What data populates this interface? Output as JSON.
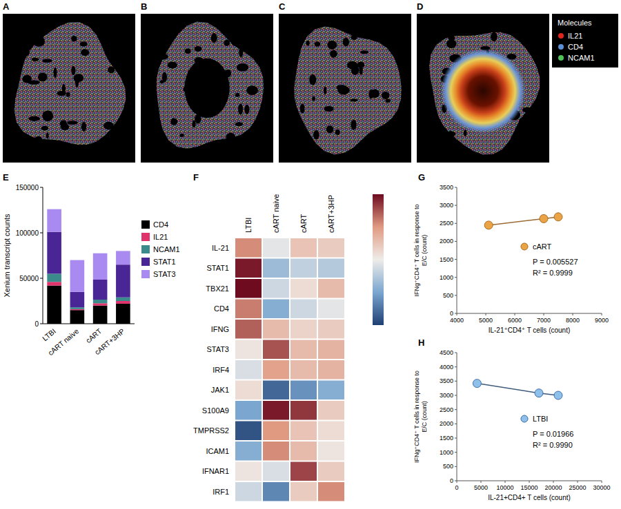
{
  "images": {
    "panels": [
      {
        "panel_label": "A"
      },
      {
        "panel_label": "B"
      },
      {
        "panel_label": "C"
      },
      {
        "panel_label": "D"
      }
    ],
    "legend": {
      "title": "Molecules",
      "items": [
        {
          "name": "IL21",
          "color": "#e0241f"
        },
        {
          "name": "CD4",
          "color": "#5b8fd6"
        },
        {
          "name": "NCAM1",
          "color": "#4fc25a"
        }
      ]
    }
  },
  "chart_data": [
    {
      "panel_label": "E",
      "type": "bar",
      "stacked": true,
      "categories": [
        "LTBI",
        "cART naive",
        "cART",
        "cART+3HP"
      ],
      "series": [
        {
          "name": "CD4",
          "color": "#000000",
          "values": [
            42000,
            15000,
            20000,
            22000
          ]
        },
        {
          "name": "IL21",
          "color": "#e0336b",
          "values": [
            4000,
            1000,
            2500,
            3000
          ]
        },
        {
          "name": "NCAM1",
          "color": "#3b8a8c",
          "values": [
            9000,
            2000,
            4000,
            4000
          ]
        },
        {
          "name": "STAT1",
          "color": "#4a2596",
          "values": [
            46000,
            17000,
            22000,
            36000
          ]
        },
        {
          "name": "STAT3",
          "color": "#a98af0",
          "values": [
            25000,
            35000,
            29000,
            15000
          ]
        }
      ],
      "ylim": [
        0,
        150000
      ],
      "yticks": [
        0,
        50000,
        100000,
        150000
      ],
      "y_label": "Xenium transcript counts",
      "legend": "right"
    },
    {
      "panel_label": "F",
      "type": "heatmap",
      "columns": [
        "LTBI",
        "cART naive",
        "cART",
        "cART+3HP"
      ],
      "rows": [
        "IL-21",
        "STAT1",
        "TBX21",
        "CD4",
        "IFNG",
        "STAT3",
        "IRF4",
        "JAK1",
        "S100A9",
        "TMPRSS2",
        "ICAM1",
        "IFNAR1",
        "IRF1"
      ],
      "cells": [
        [
          0.55,
          -0.05,
          0.25,
          0.2
        ],
        [
          0.95,
          -0.35,
          -0.2,
          -0.25
        ],
        [
          1.0,
          -0.15,
          0.1,
          0.3
        ],
        [
          0.6,
          -0.45,
          -0.15,
          -0.05
        ],
        [
          0.7,
          0.3,
          0.15,
          0.2
        ],
        [
          0.05,
          0.75,
          0.3,
          0.35
        ],
        [
          -0.1,
          0.45,
          0.3,
          0.35
        ],
        [
          0.1,
          -0.8,
          -0.6,
          -0.45
        ],
        [
          -0.5,
          0.95,
          0.85,
          0.2
        ],
        [
          -0.9,
          0.5,
          0.25,
          0.1
        ],
        [
          -0.45,
          0.55,
          0.3,
          0.05
        ],
        [
          0.05,
          -0.1,
          0.8,
          0.2
        ],
        [
          -0.15,
          -0.65,
          0.2,
          0.55
        ]
      ],
      "colorbar": {
        "range": [
          -1,
          1
        ]
      }
    },
    {
      "panel_label": "G",
      "type": "scatter",
      "series": [
        {
          "name": "cART",
          "color": "#eaa446",
          "marker": "circle",
          "line_style": "solid",
          "x": [
            5100,
            7000,
            7500
          ],
          "values": [
            2450,
            2630,
            2680
          ]
        }
      ],
      "xlim": [
        4000,
        9000
      ],
      "xticks": [
        4000,
        5000,
        6000,
        7000,
        8000,
        9000
      ],
      "ylim": [
        0,
        3500
      ],
      "yticks": [
        0,
        500,
        1000,
        1500,
        2000,
        2500,
        3000,
        3500
      ],
      "x_label": "IL-21⁺CD4⁺ T cells (count)",
      "y_label": "IFNg⁺CD4⁺ T cells in response to E/C (count)",
      "annotations": [
        "P = 0.005527",
        "R² = 0.9999"
      ],
      "legend": "right"
    },
    {
      "panel_label": "H",
      "type": "scatter",
      "series": [
        {
          "name": "LTBI",
          "color": "#8fc0ea",
          "marker": "circle",
          "line_style": "solid",
          "x": [
            4200,
            17000,
            21000
          ],
          "values": [
            3420,
            3080,
            3000
          ]
        }
      ],
      "xlim": [
        0,
        30000
      ],
      "xticks": [
        0,
        5000,
        10000,
        15000,
        20000,
        25000,
        30000
      ],
      "ylim": [
        0,
        4500
      ],
      "yticks": [
        0,
        500,
        1000,
        1500,
        2000,
        2500,
        3000,
        3500,
        4000,
        4500
      ],
      "x_label": "IL-21+CD4+ T cells (count)",
      "y_label": "IFNg⁺CD4⁺ T cells in response to E/C (count)",
      "annotations": [
        "P = 0.01966",
        "R² = 0.9990"
      ],
      "legend": "right"
    }
  ]
}
